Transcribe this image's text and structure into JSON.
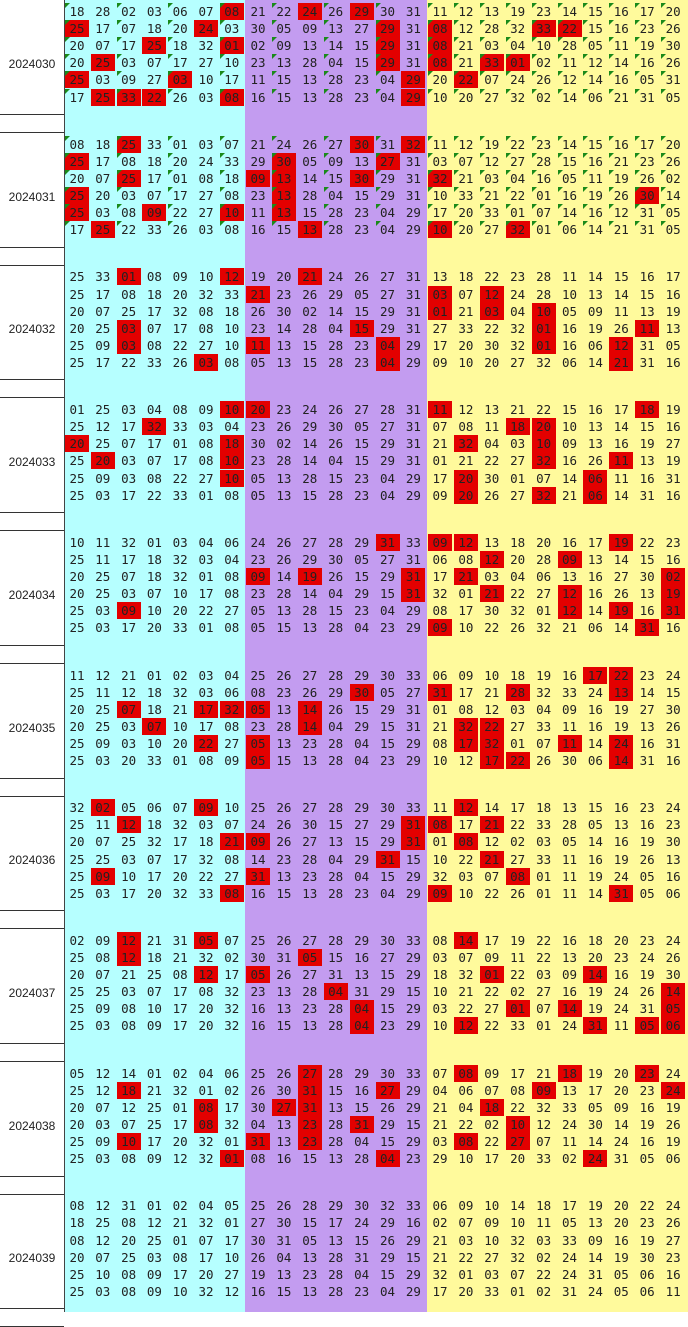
{
  "chart_data": {
    "type": "table",
    "colors": {
      "zone1": "#b6ffff",
      "zone2": "#c39cf0",
      "zone3": "#fffa9c",
      "hit": "#e30000",
      "flag": "#1a8a1a"
    },
    "blocks": [
      {
        "issue": "2024030",
        "flags": true,
        "rows": [
          "18 28 02 03 06 07 08 21 22 24 26 29 30 31 11 12 13 19 23 14 15 16 17 20",
          "25 17 07 18 20 24 03 30 05 09 13 27 29 31 08 12 28 32 33 22 15 16 23 26",
          "20 07 17 25 18 32 01 02 09 13 14 15 29 31 08 21 03 04 10 28 05 11 19 30",
          "20 25 03 07 17 27 10 23 13 28 04 15 29 31 08 21 33 01 02 11 12 14 16 26",
          "25 03 09 27 03 10 17 11 15 13 28 23 04 29 20 22 07 24 26 12 14 16 05 31",
          "17 25 33 22 26 03 08 16 15 13 28 23 04 29 10 20 27 32 02 14 06 21 31 05"
        ],
        "hits": [
          [
            6,
            9,
            11
          ],
          [
            0,
            5,
            12,
            14,
            18,
            19
          ],
          [
            3,
            6,
            12,
            14
          ],
          [
            1,
            12,
            14,
            16,
            17
          ],
          [
            0,
            4,
            13,
            15
          ],
          [
            1,
            2,
            3,
            6,
            13
          ]
        ]
      },
      {
        "issue": "2024031",
        "flags": true,
        "rows": [
          "08 18 25 33 01 03 07 21 24 26 27 30 31 32 11 12 19 22 23 14 15 16 17 20",
          "25 17 08 18 20 24 33 29 30 05 09 13 27 31 03 07 12 27 28 15 16 21 23 26",
          "20 07 25 17 01 08 18 09 13 14 15 30 29 31 32 21 03 04 16 05 11 19 26 02",
          "25 20 03 07 17 27 08 23 13 28 04 15 29 31 10 33 21 22 01 16 19 26 30 14",
          "25 03 08 09 22 27 10 11 13 15 28 23 04 29 17 20 33 01 07 14 16 12 31 05",
          "17 25 22 33 26 03 08 16 15 13 28 23 04 29 10 20 27 32 01 06 14 21 31 05"
        ],
        "hits": [
          [
            2,
            11,
            13
          ],
          [
            0,
            8,
            12
          ],
          [
            2,
            7,
            8,
            11,
            14
          ],
          [
            0,
            8,
            22
          ],
          [
            0,
            3,
            6,
            8
          ],
          [
            1,
            9,
            14,
            17
          ]
        ]
      },
      {
        "issue": "2024032",
        "flags": false,
        "rows": [
          "25 33 01 08 09 10 12 19 20 21 24 26 27 31 13 18 22 23 28 11 14 15 16 17",
          "25 17 08 18 20 32 33 21 23 26 29 05 27 31 03 07 12 24 28 10 13 14 15 16",
          "20 07 25 17 32 08 18 26 30 02 14 15 29 31 01 21 03 04 10 05 09 11 13 19",
          "20 25 03 07 17 08 10 23 14 28 04 15 29 31 27 33 22 32 01 16 19 26 11 13",
          "25 09 03 08 22 27 10 11 13 15 28 23 04 29 17 20 30 32 01 16 06 12 31 05",
          "25 17 22 33 26 03 08 05 13 15 28 23 04 29 09 10 20 27 32 06 14 21 31 16"
        ],
        "hits": [
          [
            2,
            6,
            9
          ],
          [
            7,
            14,
            16
          ],
          [
            14,
            16,
            18
          ],
          [
            2,
            11,
            18,
            22
          ],
          [
            2,
            7,
            12,
            18,
            21
          ],
          [
            5,
            12,
            21
          ]
        ]
      },
      {
        "issue": "2024033",
        "flags": false,
        "rows": [
          "01 25 03 04 08 09 10 20 23 24 26 27 28 31 11 12 13 21 22 15 16 17 18 19",
          "25 12 17 32 33 03 04 23 26 29 30 05 27 31 07 08 11 18 20 10 13 14 15 16",
          "20 25 07 17 01 08 18 30 02 14 26 15 29 31 21 32 04 03 10 09 13 16 19 27",
          "25 20 03 07 17 08 10 23 28 14 04 15 29 31 01 21 22 27 32 16 26 11 13 19",
          "25 09 03 08 22 27 10 05 13 28 15 23 04 29 17 20 30 01 07 14 06 11 16 31",
          "25 03 17 22 33 01 08 05 13 15 28 23 04 29 09 20 26 27 32 21 06 14 31 16"
        ],
        "hits": [
          [
            6,
            7,
            14,
            22
          ],
          [
            3,
            17,
            18
          ],
          [
            0,
            6,
            15,
            18
          ],
          [
            1,
            6,
            18,
            21
          ],
          [
            6,
            15,
            20
          ],
          [
            15,
            18,
            20
          ]
        ]
      },
      {
        "issue": "2024034",
        "flags": false,
        "rows": [
          "10 11 32 01 03 04 06 24 26 27 28 29 31 33 09 12 13 18 20 16 17 19 22 23",
          "25 11 17 18 32 03 04 23 26 29 30 05 27 31 06 08 12 20 28 09 13 14 15 16",
          "20 25 07 18 32 01 08 09 14 19 26 15 29 31 17 21 03 04 06 13 16 27 30 02",
          "20 25 03 07 10 17 08 23 28 14 04 29 15 31 32 01 21 22 27 12 16 26 13 19",
          "25 03 09 10 20 22 27 05 13 28 15 23 04 29 08 17 30 32 01 12 14 19 16 31",
          "25 03 17 20 33 01 08 05 15 13 28 04 23 29 09 10 22 26 32 21 06 14 31 16"
        ],
        "hits": [
          [
            12,
            14,
            15,
            21
          ],
          [
            16,
            19
          ],
          [
            7,
            9,
            13,
            15,
            23
          ],
          [
            13,
            16,
            19,
            23
          ],
          [
            2,
            19,
            21,
            23
          ],
          [
            14,
            22
          ]
        ]
      },
      {
        "issue": "2024035",
        "flags": false,
        "rows": [
          "11 12 21 01 02 03 04 25 26 27 28 29 30 33 06 09 10 18 19 16 17 22 23 24",
          "25 11 12 18 32 03 06 08 23 26 29 30 05 27 31 17 21 28 32 33 24 13 14 15 16",
          "20 25 07 18 21 17 32 05 13 14 26 15 29 31 01 08 12 03 04 09 16 19 27 30",
          "20 25 03 07 10 17 08 23 28 14 04 29 15 31 21 32 22 27 33 11 16 19 13 26",
          "25 09 03 10 20 22 27 05 13 23 28 04 15 29 08 17 32 01 07 11 14 24 16 31",
          "25 03 20 33 01 08 09 05 15 13 28 04 23 29 10 12 17 22 26 30 06 14 31 16"
        ],
        "hits": [
          [
            20,
            21
          ],
          [
            11,
            14,
            17,
            21
          ],
          [
            2,
            5,
            6,
            7,
            9
          ],
          [
            3,
            9,
            15,
            16
          ],
          [
            5,
            7,
            15,
            16,
            19,
            21
          ],
          [
            7,
            16,
            17,
            21
          ]
        ]
      },
      {
        "issue": "2024036",
        "flags": false,
        "rows": [
          "32 02 05 06 07 09 10 25 26 27 28 29 30 33 11 12 14 17 18 13 15 16 23 24",
          "25 11 12 18 32 03 07 24 26 30 15 27 29 31 08 17 21 22 33 28 05 13 16 23",
          "20 07 25 32 17 18 21 09 26 27 13 15 29 31 01 08 12 02 03 05 14 16 19 30",
          "25 25 03 07 17 32 08 14 23 28 04 29 31 15 10 22 21 27 33 11 16 19 26 13",
          "25 09 10 17 20 22 27 31 13 23 28 04 15 29 32 03 07 08 01 11 19 24 05 16",
          "25 03 17 20 32 33 08 16 15 13 28 23 04 29 09 10 22 26 01 11 14 31 05 06"
        ],
        "hits": [
          [
            1,
            5,
            15
          ],
          [
            2,
            13,
            14,
            16
          ],
          [
            6,
            7,
            13,
            15
          ],
          [
            12,
            16
          ],
          [
            1,
            7,
            17
          ],
          [
            6,
            14,
            21
          ]
        ]
      },
      {
        "issue": "2024037",
        "flags": false,
        "rows": [
          "02 09 12 21 31 05 07 25 26 27 28 29 30 33 08 14 17 19 22 16 18 20 23 24",
          "25 08 12 18 21 32 02 30 31 05 15 16 27 29 03 07 09 11 22 13 20 23 24 26",
          "20 07 21 25 08 12 17 05 26 27 31 13 15 29 18 32 01 22 03 09 14 16 19 30",
          "25 25 03 07 17 08 32 23 13 28 04 31 29 15 10 21 22 02 27 16 19 24 26 14",
          "25 09 08 10 17 20 32 16 13 23 28 04 15 29 03 22 27 01 07 14 19 24 31 05",
          "25 03 08 09 17 20 32 16 15 13 28 04 23 29 10 12 22 33 01 24 31 11 05 06"
        ],
        "hits": [
          [
            2,
            5,
            15
          ],
          [
            2,
            9
          ],
          [
            5,
            7,
            16,
            20
          ],
          [
            10,
            23
          ],
          [
            11,
            17,
            19,
            23
          ],
          [
            11,
            15,
            20,
            22,
            23
          ]
        ]
      },
      {
        "issue": "2024038",
        "flags": false,
        "rows": [
          "05 12 14 01 02 04 06 25 26 27 28 29 30 33 07 08 09 17 21 18 19 20 23 24",
          "25 12 18 21 32 01 02 26 30 31 15 16 27 29 04 06 07 08 09 13 17 20 23 24",
          "20 07 12 25 01 08 17 30 27 31 13 15 26 29 21 04 18 22 32 33 05 09 16 19",
          "20 03 07 25 17 08 32 04 13 23 28 31 29 15 21 22 02 10 12 24 30 14 19 26",
          "25 09 10 17 20 32 01 31 13 23 28 04 15 29 03 08 22 27 07 11 14 24 16 19",
          "25 03 08 09 12 32 01 08 16 15 13 28 04 23 29 10 17 20 33 02 24 31 05 06 11"
        ],
        "hits": [
          [
            9,
            15,
            19,
            22
          ],
          [
            2,
            9,
            12,
            18,
            23
          ],
          [
            5,
            8,
            9,
            16
          ],
          [
            5,
            9,
            11,
            17
          ],
          [
            2,
            7,
            9,
            15,
            17
          ],
          [
            6,
            12,
            20
          ]
        ]
      },
      {
        "issue": "2024039",
        "flags": false,
        "rows": [
          "08 12 31 01 02 04 05 25 26 28 29 30 32 33 06 09 10 14 18 17 19 20 22 24",
          "18 25 08 12 21 32 01 27 30 15 17 24 29 16 02 07 09 10 11 05 13 20 23 26",
          "08 12 20 25 01 07 17 30 31 05 13 15 26 29 21 03 10 32 03 33 09 16 19 27",
          "20 07 25 03 08 17 10 26 04 13 28 31 29 15 21 22 27 32 02 24 14 19 30 23",
          "25 10 08 09 17 20 27 19 13 23 28 04 15 29 32 01 03 07 22 24 31 05 06 16",
          "25 03 08 09 10 32 12 16 15 13 28 23 04 29 17 20 33 01 02 31 24 05 06 11"
        ],
        "hits": [
          [],
          [],
          [],
          [],
          [],
          []
        ]
      }
    ]
  }
}
